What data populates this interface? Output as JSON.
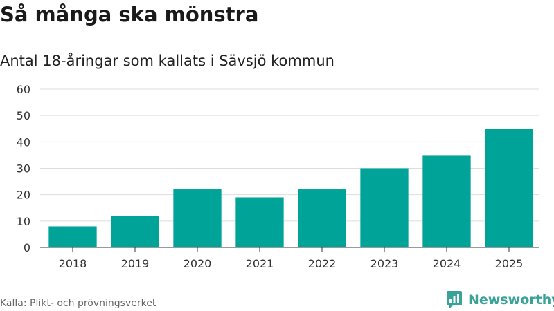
{
  "title": "Så många ska mönstra",
  "subtitle": "Antal 18-åringar som kallats i Sävsjö kommun",
  "source": "Källa: Plikt- och prövningsverket",
  "brand": {
    "name": "Newsworthy",
    "icon": "newsworthy-logo-icon",
    "color": "#3aa398"
  },
  "colors": {
    "bar": "#00a398",
    "grid": "#dddddd",
    "axis": "#333333"
  },
  "chart_data": {
    "type": "bar",
    "categories": [
      "2018",
      "2019",
      "2020",
      "2021",
      "2022",
      "2023",
      "2024",
      "2025"
    ],
    "values": [
      8,
      12,
      22,
      19,
      22,
      30,
      35,
      45
    ],
    "yticks": [
      0,
      10,
      20,
      30,
      40,
      50,
      60
    ],
    "ylim": [
      0,
      60
    ],
    "grid": true,
    "legend": "none"
  }
}
